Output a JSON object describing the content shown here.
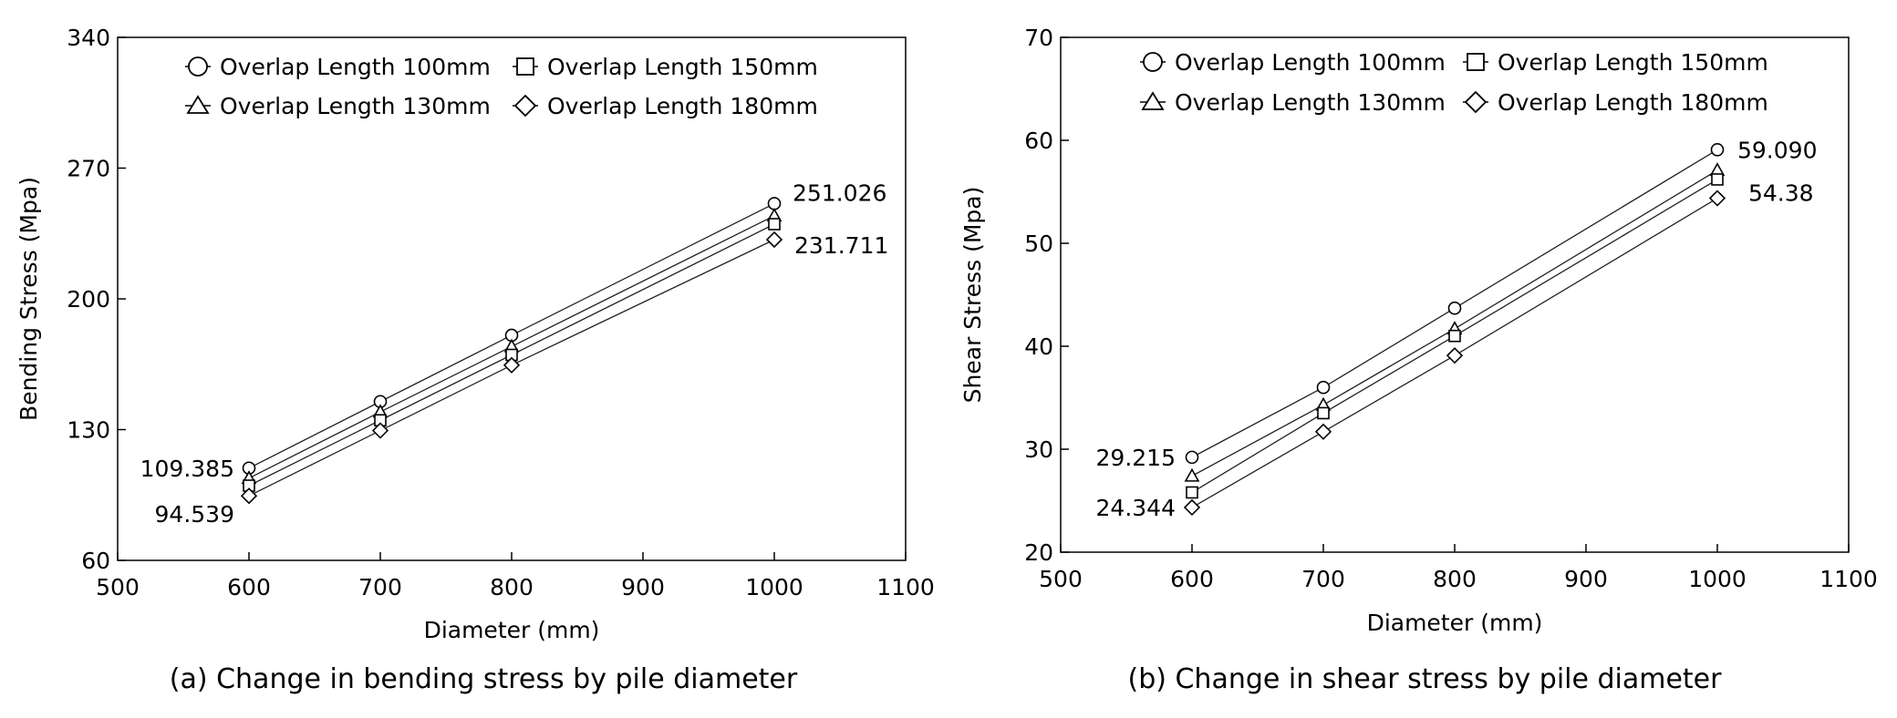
{
  "chart_data": [
    {
      "type": "line",
      "caption": "(a) Change in bending stress by pile diameter",
      "xlabel": "Diameter (mm)",
      "ylabel": "Bending Stress (Mpa)",
      "xlim": [
        500,
        1100
      ],
      "ylim": [
        60,
        340
      ],
      "xticks": [
        500,
        600,
        700,
        800,
        900,
        1000,
        1100
      ],
      "yticks": [
        60,
        130,
        200,
        270,
        340
      ],
      "x": [
        600,
        700,
        800,
        1000
      ],
      "series": [
        {
          "name": "Overlap Length 100mm",
          "marker": "circle",
          "values": [
            109.385,
            145.0,
            180.5,
            251.026
          ]
        },
        {
          "name": "Overlap Length 130mm",
          "marker": "triangle",
          "values": [
            104.0,
            139.5,
            174.5,
            244.5
          ]
        },
        {
          "name": "Overlap Length 150mm",
          "marker": "square",
          "values": [
            100.0,
            135.0,
            170.0,
            240.0
          ]
        },
        {
          "name": "Overlap Length 180mm",
          "marker": "diamond",
          "values": [
            94.539,
            129.5,
            164.5,
            231.711
          ]
        }
      ],
      "annotations": [
        {
          "text": "109.385",
          "x": 600,
          "y": 109.385,
          "pos": "left"
        },
        {
          "text": "94.539",
          "x": 600,
          "y": 94.539,
          "pos": "left-below"
        },
        {
          "text": "251.026",
          "x": 1000,
          "y": 251.026,
          "pos": "right-above"
        },
        {
          "text": "231.711",
          "x": 1000,
          "y": 231.711,
          "pos": "right"
        }
      ],
      "legend_position": "top-left"
    },
    {
      "type": "line",
      "caption": "(b) Change in shear stress by pile diameter",
      "xlabel": "Diameter (mm)",
      "ylabel": "Shear Stress (Mpa)",
      "xlim": [
        500,
        1100
      ],
      "ylim": [
        20,
        70
      ],
      "xticks": [
        500,
        600,
        700,
        800,
        900,
        1000,
        1100
      ],
      "yticks": [
        20,
        30,
        40,
        50,
        60,
        70
      ],
      "x": [
        600,
        700,
        800,
        1000
      ],
      "series": [
        {
          "name": "Overlap Length 100mm",
          "marker": "circle",
          "values": [
            29.215,
            36.0,
            43.7,
            59.09
          ]
        },
        {
          "name": "Overlap Length 130mm",
          "marker": "triangle",
          "values": [
            27.4,
            34.3,
            41.7,
            57.1
          ]
        },
        {
          "name": "Overlap Length 150mm",
          "marker": "square",
          "values": [
            25.8,
            33.5,
            41.0,
            56.2
          ]
        },
        {
          "name": "Overlap Length 180mm",
          "marker": "diamond",
          "values": [
            24.344,
            31.7,
            39.1,
            54.38
          ]
        }
      ],
      "annotations": [
        {
          "text": "29.215",
          "x": 600,
          "y": 29.215,
          "pos": "left"
        },
        {
          "text": "24.344",
          "x": 600,
          "y": 24.344,
          "pos": "left"
        },
        {
          "text": "59.090",
          "x": 1000,
          "y": 59.09,
          "pos": "right"
        },
        {
          "text": "54.38",
          "x": 1000,
          "y": 54.38,
          "pos": "right-above"
        }
      ],
      "legend_position": "top-left"
    }
  ]
}
